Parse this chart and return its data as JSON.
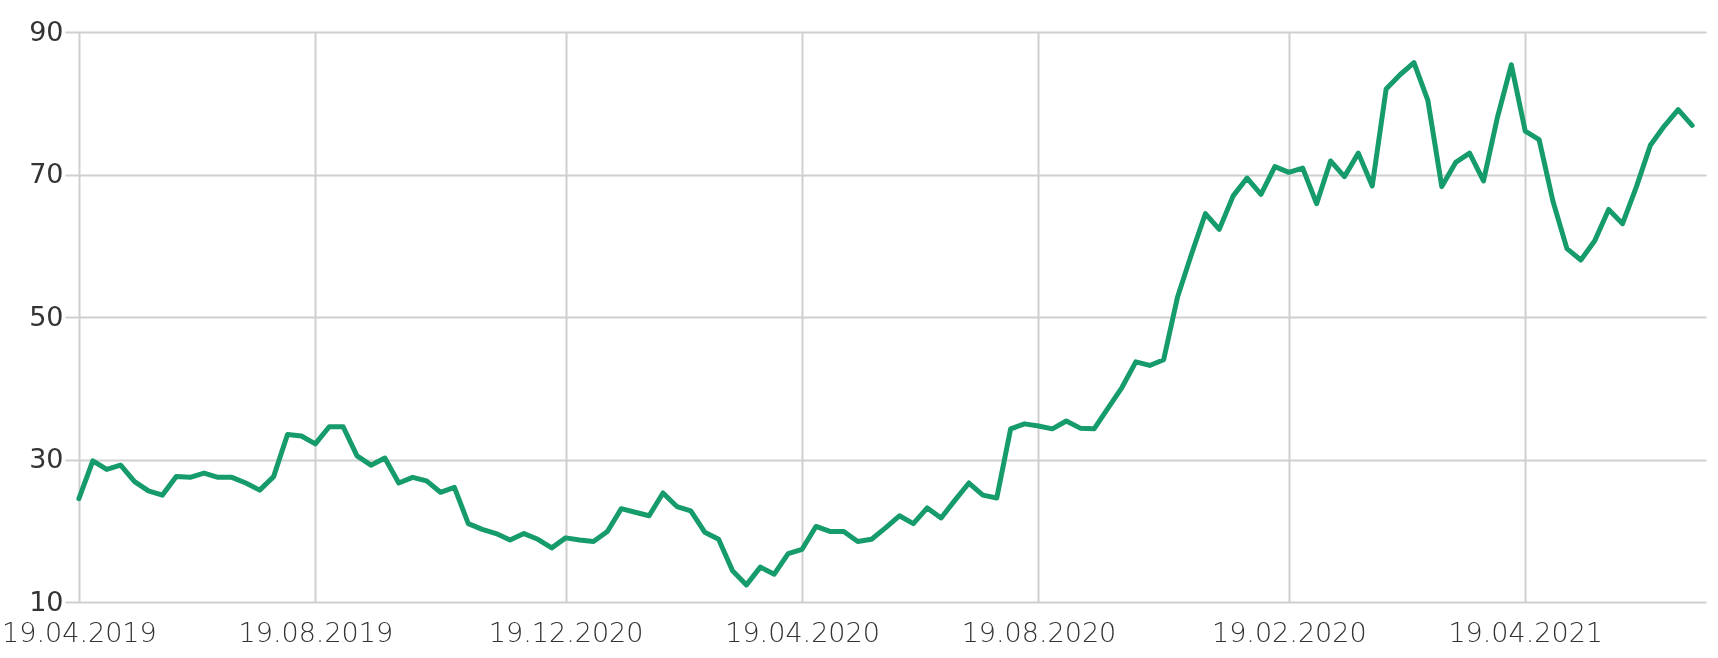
{
  "chart_data": {
    "type": "line",
    "categories": [
      "19.04.2019",
      null,
      null,
      null,
      null,
      null,
      null,
      null,
      null,
      null,
      null,
      null,
      null,
      null,
      null,
      null,
      null,
      "19.08.2019",
      null,
      null,
      null,
      null,
      null,
      null,
      null,
      null,
      null,
      null,
      null,
      null,
      null,
      null,
      null,
      null,
      null,
      "19.12.2020",
      null,
      null,
      null,
      null,
      null,
      null,
      null,
      null,
      null,
      null,
      null,
      null,
      null,
      null,
      null,
      null,
      "19.04.2020",
      null,
      null,
      null,
      null,
      null,
      null,
      null,
      null,
      null,
      null,
      null,
      null,
      null,
      null,
      null,
      null,
      "19.08.2020",
      null,
      null,
      null,
      null,
      null,
      null,
      null,
      null,
      null,
      null,
      null,
      null,
      null,
      null,
      null,
      null,
      null,
      "19.02.2020",
      null,
      null,
      null,
      null,
      null,
      null,
      null,
      null,
      null,
      null,
      null,
      null,
      null,
      null,
      null,
      null,
      "19.04.2021",
      null,
      null,
      null,
      null,
      null,
      null,
      null,
      null,
      null,
      null,
      null,
      null
    ],
    "series": [
      {
        "color": "#169b6b",
        "values": [
          24.5,
          29.8,
          28.6,
          29.2,
          26.9,
          25.6,
          25.0,
          27.6,
          27.5,
          28.1,
          27.5,
          27.5,
          26.7,
          25.7,
          27.6,
          33.5,
          33.3,
          32.2,
          34.6,
          34.6,
          30.5,
          29.2,
          30.2,
          26.7,
          27.5,
          27.0,
          25.4,
          26.1,
          21.0,
          20.2,
          19.6,
          18.7,
          19.6,
          18.8,
          17.6,
          19.0,
          18.7,
          18.5,
          19.9,
          23.1,
          22.6,
          22.1,
          25.3,
          23.4,
          22.8,
          19.8,
          18.8,
          14.4,
          12.4,
          14.9,
          13.9,
          16.8,
          17.4,
          20.6,
          19.9,
          19.9,
          18.5,
          18.8,
          20.4,
          22.1,
          21.0,
          23.2,
          21.8,
          24.3,
          26.7,
          25.0,
          24.6,
          34.3,
          35.0,
          34.7,
          34.3,
          35.4,
          34.4,
          34.3,
          37.2,
          40.1,
          43.7,
          43.2,
          44.0,
          52.8,
          58.8,
          64.5,
          62.3,
          67.0,
          69.5,
          67.2,
          71.1,
          70.3,
          70.9,
          65.9,
          71.9,
          69.7,
          73.0,
          68.4,
          82.0,
          84.0,
          85.7,
          80.4,
          68.3,
          71.7,
          73.0,
          69.1,
          78.0,
          85.4,
          76.1,
          74.9,
          66.2,
          59.6,
          58.0,
          60.7,
          65.1,
          63.1,
          68.3,
          74.1,
          76.8,
          79.1,
          76.9
        ]
      }
    ],
    "ylim": [
      10,
      90
    ],
    "yticks": [
      10,
      30,
      50,
      70,
      90
    ],
    "grid": true,
    "line_style": "solid",
    "marker": "none"
  }
}
